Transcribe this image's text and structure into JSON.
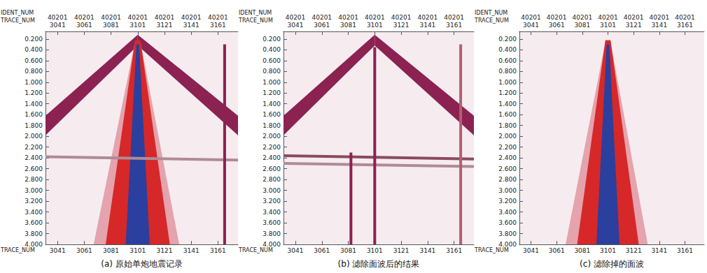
{
  "chart_data": [
    {
      "type": "section",
      "caption": "(a) 原始单炮地震记录",
      "ident_label": "IDENT_NUM",
      "trace_label": "TRACE_NUM",
      "ident_num": "40201",
      "xlim": [
        3032,
        3176
      ],
      "xticks": [
        3041,
        3061,
        3081,
        3101,
        3121,
        3141,
        3161
      ],
      "ylim": [
        0.06,
        4.0
      ],
      "yticks": [
        {
          "value": 0.2,
          "label": "0.200"
        },
        {
          "value": 0.4,
          "label": "0.400"
        },
        {
          "value": 0.6,
          "label": "0.600"
        },
        {
          "value": 0.8,
          "label": "0.800"
        },
        {
          "value": 1.0,
          "label": "1.000"
        },
        {
          "value": 1.2,
          "label": "1.200"
        },
        {
          "value": 1.4,
          "label": "1.400"
        },
        {
          "value": 1.6,
          "label": "1.600"
        },
        {
          "value": 1.8,
          "label": "1.800"
        },
        {
          "value": 2.0,
          "label": "2.000"
        },
        {
          "value": 2.2,
          "label": "2.200"
        },
        {
          "value": 2.4,
          "label": "2.400"
        },
        {
          "value": 2.6,
          "label": "2.600"
        },
        {
          "value": 2.8,
          "label": "2.800"
        },
        {
          "value": 3.0,
          "label": "3.000"
        },
        {
          "value": 3.2,
          "label": "3.200"
        },
        {
          "value": 3.4,
          "label": "3.400"
        },
        {
          "value": 3.6,
          "label": "3.600"
        },
        {
          "value": 3.8,
          "label": "3.800"
        },
        {
          "value": 4.0,
          "label": "4.000"
        }
      ],
      "grid": false,
      "series": [
        {
          "type": "line",
          "color": "#b08a96",
          "x": [
            3032,
            3176
          ],
          "y": [
            2.38,
            2.44
          ]
        },
        {
          "type": "polygon",
          "color": "#8b2252",
          "x": [
            3101,
            3032,
            3032,
            3101
          ],
          "y": [
            0.12,
            1.62,
            1.98,
            0.32
          ]
        },
        {
          "type": "polygon",
          "color": "#8b2252",
          "x": [
            3101,
            3176,
            3176,
            3101
          ],
          "y": [
            0.12,
            1.62,
            1.98,
            0.32
          ]
        },
        {
          "type": "polygon",
          "color": "#e4a3ad",
          "x": [
            3099,
            3103,
            3132,
            3068
          ],
          "y": [
            0.25,
            0.25,
            4.0,
            4.0
          ]
        },
        {
          "type": "polygon",
          "color": "#d62828",
          "x": [
            3099,
            3103,
            3125,
            3077
          ],
          "y": [
            0.22,
            0.22,
            4.0,
            4.0
          ]
        },
        {
          "type": "polygon",
          "color": "#2b3f9e",
          "x": [
            3100,
            3102,
            3110,
            3092
          ],
          "y": [
            0.3,
            0.3,
            4.0,
            4.0
          ]
        },
        {
          "type": "line",
          "color": "#8b2252",
          "x": [
            3166,
            3166
          ],
          "y": [
            0.3,
            4.0
          ]
        }
      ]
    },
    {
      "type": "section",
      "caption": "(b) 滤除面波后的结果",
      "ident_label": "IDENT_NUM",
      "trace_label": "TRACE_NUM",
      "ident_num": "40201",
      "xlim": [
        3032,
        3176
      ],
      "xticks": [
        3041,
        3061,
        3081,
        3101,
        3121,
        3141,
        3161
      ],
      "ylim": [
        0.06,
        4.0
      ],
      "yticks": [
        {
          "value": 0.2,
          "label": "0.200"
        },
        {
          "value": 0.4,
          "label": "0.400"
        },
        {
          "value": 0.6,
          "label": "0.600"
        },
        {
          "value": 0.8,
          "label": "0.800"
        },
        {
          "value": 1.0,
          "label": "1.000"
        },
        {
          "value": 1.2,
          "label": "1.200"
        },
        {
          "value": 1.4,
          "label": "1.400"
        },
        {
          "value": 1.6,
          "label": "1.600"
        },
        {
          "value": 1.8,
          "label": "1.800"
        },
        {
          "value": 2.0,
          "label": "2.000"
        },
        {
          "value": 2.2,
          "label": "2.200"
        },
        {
          "value": 2.4,
          "label": "2.400"
        },
        {
          "value": 2.6,
          "label": "2.600"
        },
        {
          "value": 2.8,
          "label": "2.800"
        },
        {
          "value": 3.0,
          "label": "3.000"
        },
        {
          "value": 3.2,
          "label": "3.200"
        },
        {
          "value": 3.4,
          "label": "3.400"
        },
        {
          "value": 3.6,
          "label": "3.600"
        },
        {
          "value": 3.8,
          "label": "3.800"
        },
        {
          "value": 4.0,
          "label": "4.000"
        }
      ],
      "grid": false,
      "series": [
        {
          "type": "line",
          "color": "#8b4a5e",
          "x": [
            3032,
            3176
          ],
          "y": [
            2.36,
            2.42
          ]
        },
        {
          "type": "line",
          "color": "#b08a96",
          "x": [
            3032,
            3176
          ],
          "y": [
            2.5,
            2.56
          ]
        },
        {
          "type": "polygon",
          "color": "#8b2252",
          "x": [
            3101,
            3032,
            3032,
            3101
          ],
          "y": [
            0.12,
            1.62,
            1.98,
            0.32
          ]
        },
        {
          "type": "polygon",
          "color": "#8b2252",
          "x": [
            3101,
            3176,
            3176,
            3101
          ],
          "y": [
            0.12,
            1.62,
            1.98,
            0.32
          ]
        },
        {
          "type": "line",
          "color": "#8b2252",
          "x": [
            3101,
            3101
          ],
          "y": [
            0.35,
            4.0
          ]
        },
        {
          "type": "line",
          "color": "#8b2252",
          "x": [
            3083,
            3083
          ],
          "y": [
            2.3,
            4.0
          ]
        },
        {
          "type": "line",
          "color": "#b0606f",
          "x": [
            3166,
            3166
          ],
          "y": [
            0.3,
            4.0
          ]
        }
      ]
    },
    {
      "type": "section",
      "caption": "(c) 滤除掉的面波",
      "ident_label": "IDENT_NUM",
      "trace_label": "TRACE_NUM",
      "ident_num": "40201",
      "xlim": [
        3032,
        3176
      ],
      "xticks": [
        3041,
        3061,
        3081,
        3101,
        3121,
        3141,
        3161
      ],
      "ylim": [
        0.06,
        4.0
      ],
      "yticks": [
        {
          "value": 0.2,
          "label": "0.200"
        },
        {
          "value": 0.4,
          "label": "0.400"
        },
        {
          "value": 0.6,
          "label": "0.600"
        },
        {
          "value": 0.8,
          "label": "0.800"
        },
        {
          "value": 1.0,
          "label": "1.000"
        },
        {
          "value": 1.2,
          "label": "1.200"
        },
        {
          "value": 1.4,
          "label": "1.400"
        },
        {
          "value": 1.6,
          "label": "1.600"
        },
        {
          "value": 1.8,
          "label": "1.800"
        },
        {
          "value": 2.0,
          "label": "2.000"
        },
        {
          "value": 2.2,
          "label": "2.200"
        },
        {
          "value": 2.4,
          "label": "2.400"
        },
        {
          "value": 2.6,
          "label": "2.600"
        },
        {
          "value": 2.8,
          "label": "2.800"
        },
        {
          "value": 3.0,
          "label": "3.000"
        },
        {
          "value": 3.2,
          "label": "3.200"
        },
        {
          "value": 3.4,
          "label": "3.400"
        },
        {
          "value": 3.6,
          "label": "3.600"
        },
        {
          "value": 3.8,
          "label": "3.800"
        },
        {
          "value": 4.0,
          "label": "4.000"
        }
      ],
      "grid": false,
      "series": [
        {
          "type": "polygon",
          "color": "#e4a3ad",
          "x": [
            3099,
            3103,
            3132,
            3068
          ],
          "y": [
            0.25,
            0.25,
            4.0,
            4.0
          ]
        },
        {
          "type": "polygon",
          "color": "#d62828",
          "x": [
            3099,
            3103,
            3125,
            3077
          ],
          "y": [
            0.22,
            0.22,
            4.0,
            4.0
          ]
        },
        {
          "type": "polygon",
          "color": "#2b3f9e",
          "x": [
            3100,
            3102,
            3110,
            3092
          ],
          "y": [
            0.3,
            0.3,
            4.0,
            4.0
          ]
        }
      ]
    }
  ]
}
